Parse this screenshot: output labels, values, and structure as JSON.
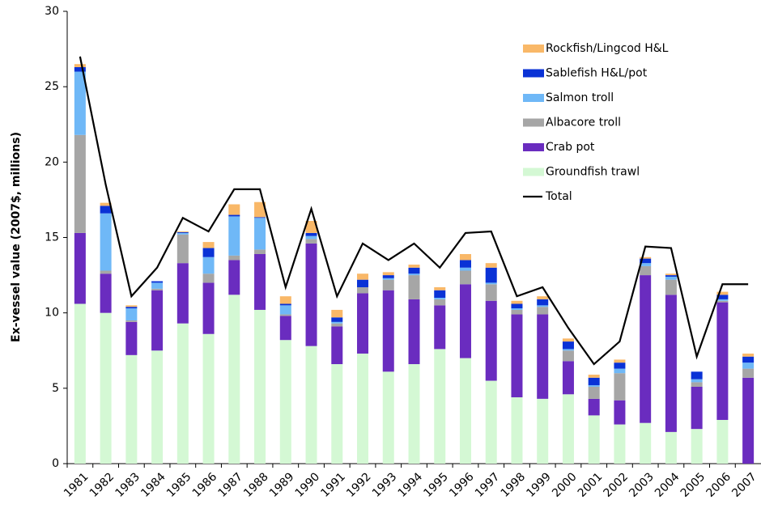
{
  "chart_data": {
    "type": "bar",
    "stacked": true,
    "y_label": "Ex-vessel value (2007$, millions)",
    "categories": [
      "1981",
      "1982",
      "1983",
      "1984",
      "1985",
      "1986",
      "1987",
      "1988",
      "1989",
      "1990",
      "1991",
      "1992",
      "1993",
      "1994",
      "1995",
      "1996",
      "1997",
      "1998",
      "1999",
      "2000",
      "2001",
      "2002",
      "2003",
      "2004",
      "2005",
      "2006",
      "2007"
    ],
    "series": [
      {
        "name": "Groundfish trawl",
        "color": "#d4f8d4",
        "values": [
          10.6,
          10.0,
          7.2,
          7.5,
          9.3,
          8.6,
          11.2,
          10.2,
          8.2,
          7.8,
          6.6,
          7.3,
          6.1,
          6.6,
          7.6,
          7.0,
          5.5,
          4.4,
          4.3,
          4.6,
          3.2,
          2.6,
          2.7,
          2.1,
          2.3,
          2.9,
          0
        ]
      },
      {
        "name": "Crab pot",
        "color": "#6a2cbf",
        "values": [
          4.7,
          2.6,
          2.2,
          4.0,
          4.0,
          3.4,
          2.3,
          3.7,
          1.6,
          6.8,
          2.5,
          4.0,
          5.4,
          4.3,
          2.9,
          4.9,
          5.3,
          5.5,
          5.6,
          2.2,
          1.1,
          1.6,
          9.8,
          9.1,
          2.8,
          7.8,
          5.7
        ]
      },
      {
        "name": "Albacore troll",
        "color": "#a6a6a6",
        "values": [
          6.5,
          0.2,
          0.1,
          0.1,
          1.9,
          0.6,
          0.3,
          0.3,
          0.1,
          0.3,
          0.2,
          0.4,
          0.7,
          1.6,
          0.4,
          0.9,
          1.1,
          0.3,
          0.5,
          0.7,
          0.8,
          1.8,
          0.6,
          1.0,
          0.3,
          0.1,
          0.6
        ]
      },
      {
        "name": "Salmon troll",
        "color": "#6fb8f7",
        "values": [
          4.2,
          3.8,
          0.8,
          0.4,
          0.1,
          1.1,
          2.6,
          2.1,
          0.6,
          0.2,
          0.1,
          0,
          0.1,
          0.1,
          0.1,
          0.2,
          0.1,
          0.1,
          0.1,
          0.1,
          0.1,
          0.3,
          0.2,
          0.2,
          0.2,
          0.1,
          0.4
        ]
      },
      {
        "name": "Sablefish H&L/pot",
        "color": "#0a32d6",
        "values": [
          0.3,
          0.5,
          0.1,
          0.1,
          0.05,
          0.6,
          0.1,
          0.05,
          0.1,
          0.2,
          0.3,
          0.5,
          0.2,
          0.4,
          0.5,
          0.5,
          1.0,
          0.3,
          0.4,
          0.5,
          0.5,
          0.4,
          0.3,
          0.1,
          0.5,
          0.3,
          0.4
        ]
      },
      {
        "name": "Rockfish/Lingcod H&L",
        "color": "#f9b868",
        "values": [
          0.2,
          0.2,
          0.1,
          0,
          0.05,
          0.4,
          0.7,
          1.0,
          0.5,
          0.8,
          0.5,
          0.4,
          0.2,
          0.2,
          0.2,
          0.4,
          0.3,
          0.2,
          0.2,
          0.2,
          0.2,
          0.2,
          0.1,
          0.1,
          0,
          0.2,
          0.2
        ]
      },
      {
        "name": "Total",
        "type": "line",
        "color": "#000000",
        "values": [
          27.0,
          18.5,
          11.1,
          13.0,
          16.3,
          15.4,
          18.2,
          18.2,
          11.7,
          16.9,
          11.1,
          14.6,
          13.5,
          14.6,
          13.0,
          15.3,
          15.4,
          11.1,
          11.7,
          9.0,
          6.6,
          8.1,
          14.4,
          14.3,
          7.1,
          11.9,
          11.9
        ]
      }
    ],
    "ylim": [
      0,
      30
    ],
    "yticks": [
      0,
      5,
      10,
      15,
      20,
      25,
      30
    ],
    "legend": "upper right"
  }
}
